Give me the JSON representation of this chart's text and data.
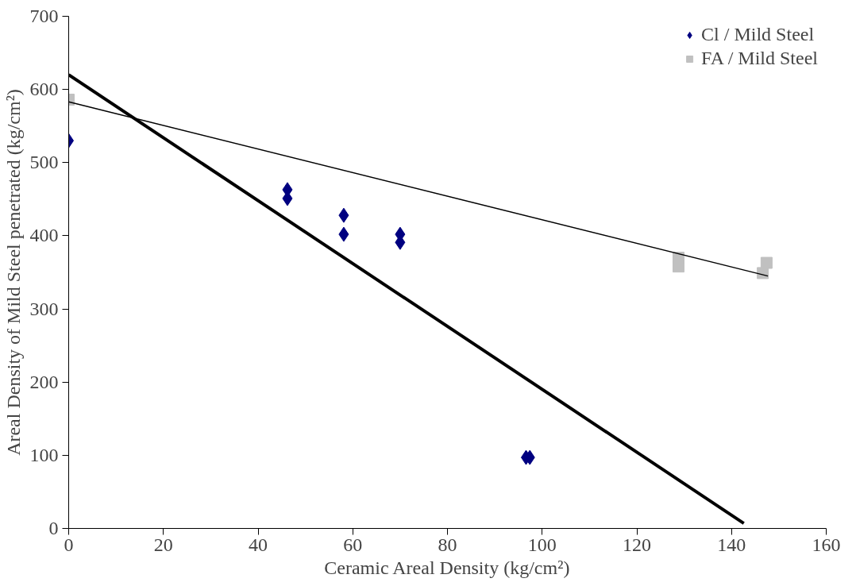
{
  "chart_data": {
    "type": "scatter",
    "xlabel": "Ceramic Areal Density (kg/cm²)",
    "ylabel": "Areal Density of Mild Steel penetrated (kg/cm²)",
    "xlim": [
      0,
      160
    ],
    "ylim": [
      0,
      700
    ],
    "xticks": [
      0,
      20,
      40,
      60,
      80,
      100,
      120,
      140,
      160
    ],
    "yticks": [
      0,
      100,
      200,
      300,
      400,
      500,
      600,
      700
    ],
    "grid": false,
    "legend": "top right",
    "series": [
      {
        "name": "Cl / Mild Steel",
        "color": "#000080",
        "marker": "diamond",
        "x": [
          0,
          46.2,
          46.2,
          58.1,
          58.1,
          70,
          70,
          96.6,
          97.4
        ],
        "values": [
          530,
          463,
          451,
          428,
          402,
          402,
          391,
          97,
          97
        ]
      },
      {
        "name": "FA / Mild Steel",
        "color": "#c0c0c0",
        "marker": "square",
        "x": [
          0,
          128.8,
          128.8,
          146.6,
          147.4
        ],
        "values": [
          586,
          370,
          358,
          349,
          363
        ]
      },
      {
        "type": "line",
        "color": "#000000",
        "x": [
          0,
          142.6
        ],
        "values": [
          620,
          7
        ]
      },
      {
        "type": "line",
        "color": "#000000",
        "x": [
          0,
          147.7
        ],
        "values": [
          583,
          345
        ]
      }
    ]
  }
}
